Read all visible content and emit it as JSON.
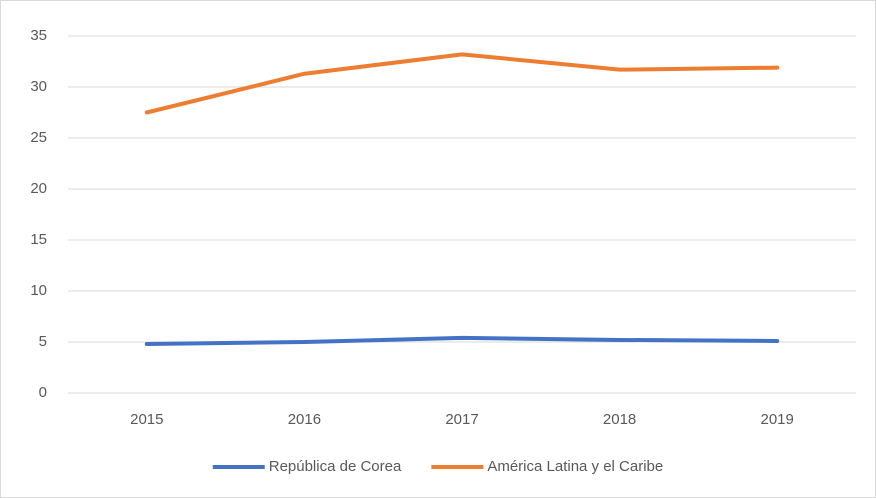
{
  "chart_data": {
    "type": "line",
    "categories": [
      "2015",
      "2016",
      "2017",
      "2018",
      "2019"
    ],
    "series": [
      {
        "name": "República de Corea",
        "color": "#4472c4",
        "values": [
          4.8,
          5.0,
          5.4,
          5.2,
          5.1
        ]
      },
      {
        "name": "América Latina y el Caribe",
        "color": "#ed7d31",
        "values": [
          27.5,
          31.3,
          33.2,
          31.7,
          31.9
        ]
      }
    ],
    "ylim": [
      0,
      35
    ],
    "yticks": [
      0,
      5,
      10,
      15,
      20,
      25,
      30,
      35
    ],
    "grid": true,
    "legend": "bottom"
  }
}
